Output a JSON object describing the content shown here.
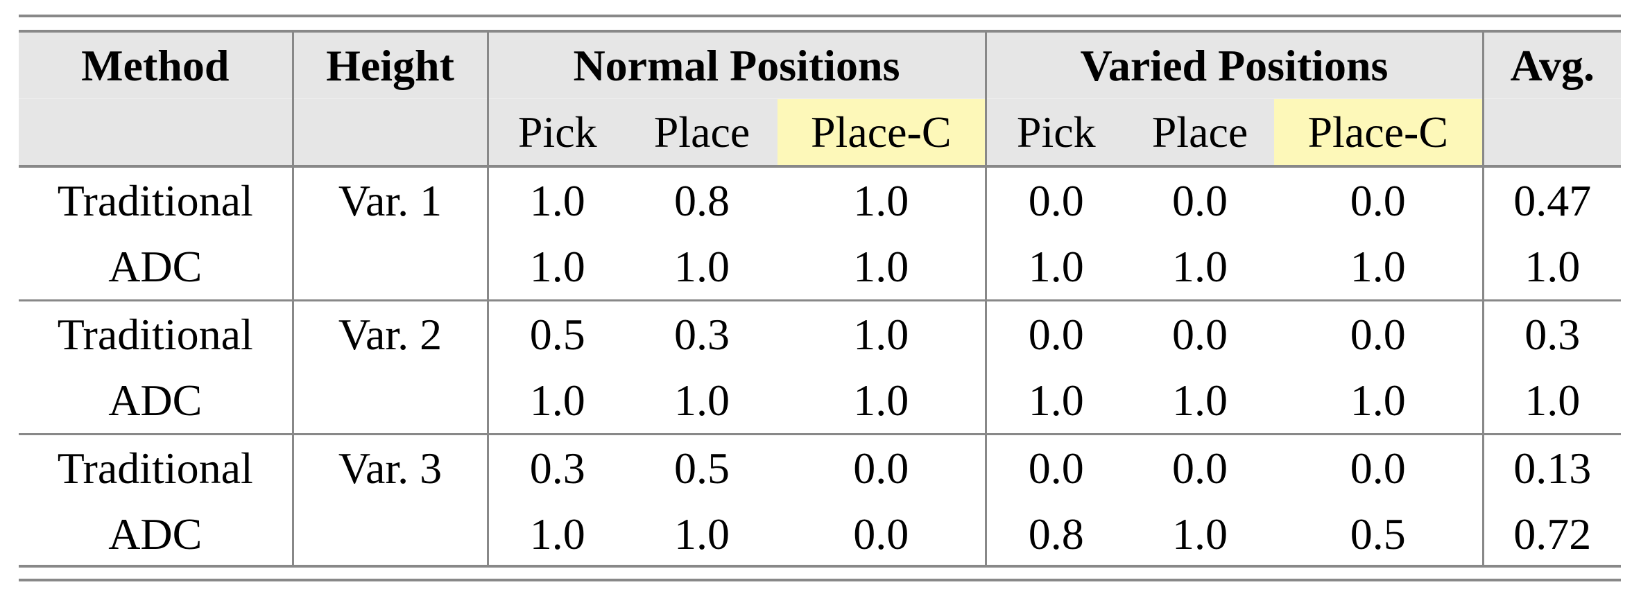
{
  "table": {
    "headers": {
      "method": "Method",
      "height": "Height",
      "normal": "Normal Positions",
      "varied": "Varied Positions",
      "avg": "Avg.",
      "sub": [
        "Pick",
        "Place",
        "Place-C",
        "Pick",
        "Place",
        "Place-C"
      ]
    },
    "highlight_color": "#fdf8b9",
    "header_color": "#e6e6e6",
    "groups": [
      {
        "height": "Var. 1",
        "rows": [
          {
            "method": "Traditional",
            "values": [
              "1.0",
              "0.8",
              "1.0",
              "0.0",
              "0.0",
              "0.0"
            ],
            "avg": "0.47"
          },
          {
            "method": "ADC",
            "values": [
              "1.0",
              "1.0",
              "1.0",
              "1.0",
              "1.0",
              "1.0"
            ],
            "avg": "1.0"
          }
        ]
      },
      {
        "height": "Var. 2",
        "rows": [
          {
            "method": "Traditional",
            "values": [
              "0.5",
              "0.3",
              "1.0",
              "0.0",
              "0.0",
              "0.0"
            ],
            "avg": "0.3"
          },
          {
            "method": "ADC",
            "values": [
              "1.0",
              "1.0",
              "1.0",
              "1.0",
              "1.0",
              "1.0"
            ],
            "avg": "1.0"
          }
        ]
      },
      {
        "height": "Var. 3",
        "rows": [
          {
            "method": "Traditional",
            "values": [
              "0.3",
              "0.5",
              "0.0",
              "0.0",
              "0.0",
              "0.0"
            ],
            "avg": "0.13"
          },
          {
            "method": "ADC",
            "values": [
              "1.0",
              "1.0",
              "0.0",
              "0.8",
              "1.0",
              "0.5"
            ],
            "avg": "0.72"
          }
        ]
      }
    ]
  }
}
